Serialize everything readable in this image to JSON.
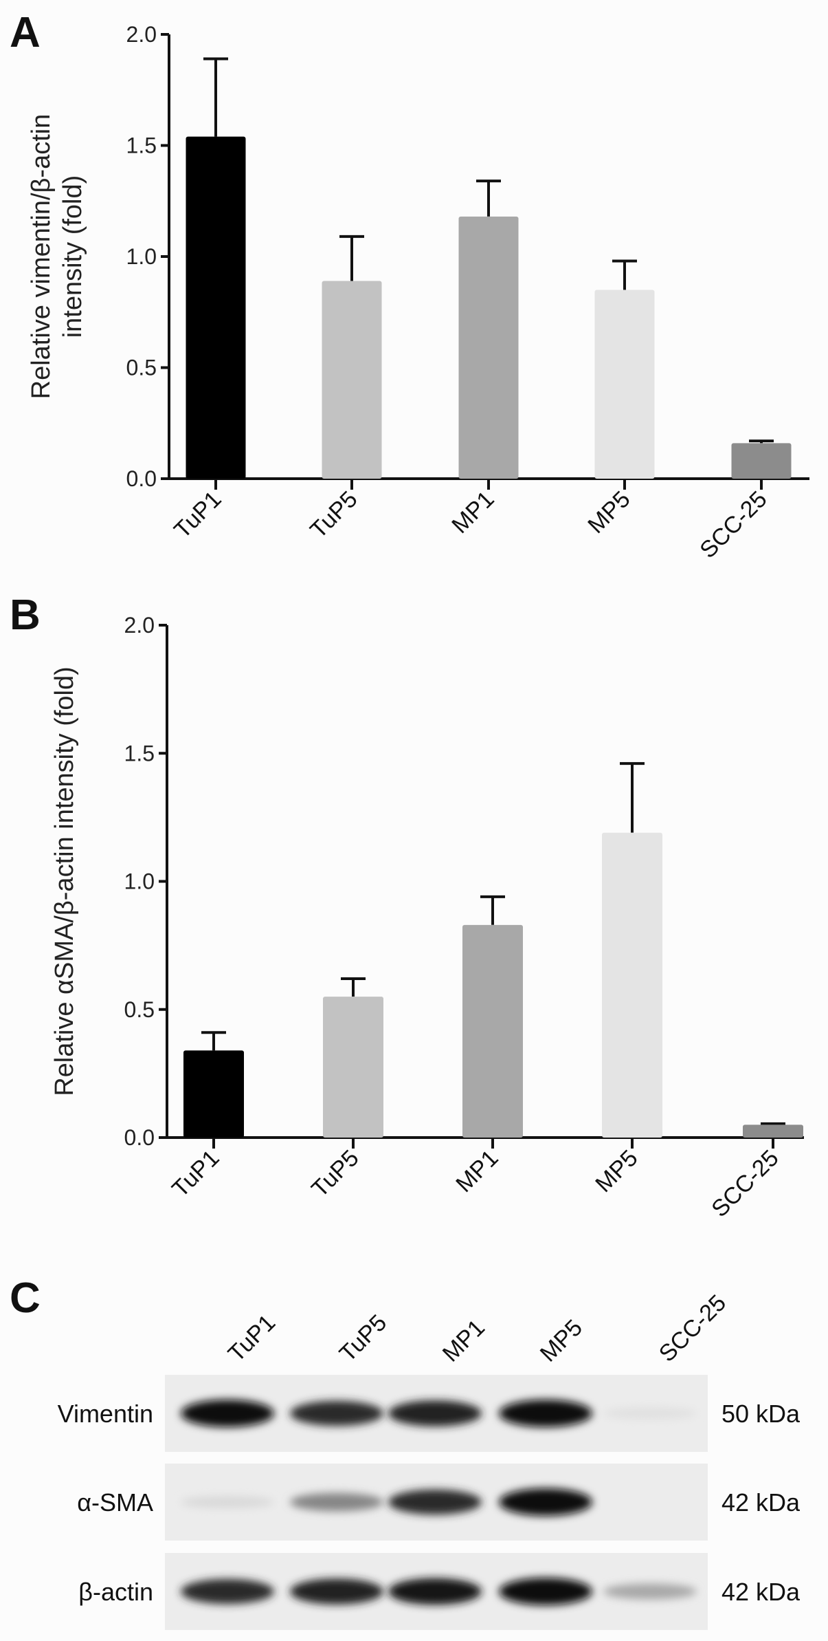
{
  "panels": {
    "a": "A",
    "b": "B",
    "c": "C"
  },
  "chart_data": [
    {
      "type": "bar",
      "panel": "A",
      "categories": [
        "TuP1",
        "TuP5",
        "MP1",
        "MP5",
        "SCC-25"
      ],
      "values": [
        1.54,
        0.89,
        1.18,
        0.85,
        0.16
      ],
      "error_upper": [
        1.89,
        1.09,
        1.34,
        0.98,
        0.17
      ],
      "colors": [
        "#000000",
        "#c2c2c2",
        "#a8a8a8",
        "#e4e4e4",
        "#8c8c8c"
      ],
      "ylabel_lines": [
        "Relative vimentin/β-actin",
        "intensity (fold)"
      ],
      "xlabel": "",
      "ylim": [
        0,
        2.0
      ],
      "yticks": [
        "0.0",
        "0.5",
        "1.0",
        "1.5",
        "2.0"
      ],
      "grid": false
    },
    {
      "type": "bar",
      "panel": "B",
      "categories": [
        "TuP1",
        "TuP5",
        "MP1",
        "MP5",
        "SCC-25"
      ],
      "values": [
        0.34,
        0.55,
        0.83,
        1.19,
        0.05
      ],
      "error_upper": [
        0.41,
        0.62,
        0.94,
        1.46,
        0.054
      ],
      "colors": [
        "#000000",
        "#c2c2c2",
        "#a8a8a8",
        "#e4e4e4",
        "#8c8c8c"
      ],
      "ylabel_lines": [
        "Relative αSMA/β-actin intensity (fold)"
      ],
      "xlabel": "",
      "ylim": [
        0,
        2.0
      ],
      "yticks": [
        "0.0",
        "0.5",
        "1.0",
        "1.5",
        "2.0"
      ],
      "grid": false
    }
  ],
  "blot": {
    "lanes": [
      "TuP1",
      "TuP5",
      "MP1",
      "MP5",
      "SCC-25"
    ],
    "rows": [
      {
        "label": "Vimentin",
        "size": "50 kDa",
        "band_intensity": [
          1.0,
          0.85,
          0.9,
          1.0,
          0.05
        ]
      },
      {
        "label": "α-SMA",
        "size": "42 kDa",
        "band_intensity": [
          0.08,
          0.45,
          0.85,
          1.0,
          0.0
        ]
      },
      {
        "label": "β-actin",
        "size": "42 kDa",
        "band_intensity": [
          0.85,
          0.9,
          0.95,
          1.0,
          0.3
        ]
      }
    ]
  }
}
